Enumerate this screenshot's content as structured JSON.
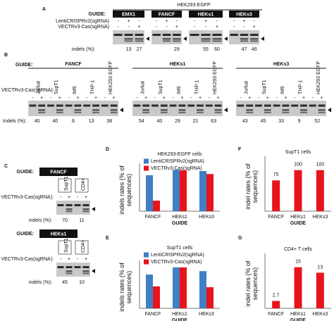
{
  "panel_a": {
    "letter": "A",
    "title": "HEK293-EGFP",
    "guide_label": "GUIDE:",
    "row_labels": [
      "LentiCRISPRv2(sgRNA)",
      "VECTRv3-Cas(sgRNA)"
    ],
    "indel_label": "indels (%):",
    "groups": [
      {
        "guide": "EMX1",
        "signs": [
          [
            "-",
            "+",
            "-"
          ],
          [
            "-",
            "-",
            "+"
          ]
        ],
        "indels": [
          13,
          27
        ]
      },
      {
        "guide": "FANCF",
        "signs": [
          [
            "-",
            "+",
            "-"
          ],
          [
            "-",
            "-",
            "+"
          ]
        ],
        "indels": [
          29
        ]
      },
      {
        "guide": "HEKs1",
        "signs": [
          [
            "-",
            "+",
            "-"
          ],
          [
            "-",
            "-",
            "+"
          ]
        ],
        "indels": [
          55,
          60
        ]
      },
      {
        "guide": "HEKs3",
        "signs": [
          [
            "-",
            "+",
            "-"
          ],
          [
            "-",
            "-",
            "+"
          ]
        ],
        "indels": [
          47,
          46
        ]
      }
    ]
  },
  "panel_b": {
    "letter": "B",
    "guide_label": "GUIDE:",
    "row_label": "VECTRv3-Cas(sgRNA):",
    "indel_label": "Indels (%):",
    "signs": [
      "-",
      "+"
    ],
    "groups": [
      {
        "guide": "FANCF",
        "lanes": [
          "Jurkat",
          "SupT1",
          "IM9",
          "THP-1",
          "HEK293 EGFP"
        ],
        "indels": [
          40,
          40,
          6,
          13,
          38
        ]
      },
      {
        "guide": "HEKs1",
        "lanes": [
          "Jurkat",
          "SupT1",
          "IM9",
          "THP-1",
          "HEK293 EGFP"
        ],
        "indels": [
          54,
          40,
          29,
          21,
          63
        ]
      },
      {
        "guide": "HEKs3",
        "lanes": [
          "Jurkat",
          "SupT1",
          "IM9",
          "THP-1",
          "HEK293 EGFP"
        ],
        "indels": [
          43,
          45,
          33,
          9,
          52
        ]
      }
    ]
  },
  "panel_c": {
    "letter": "C",
    "blots": [
      {
        "guide_label": "GUIDE:",
        "guide": "FANCF",
        "lanes": [
          "SupT1",
          "CD4+"
        ],
        "row_label": "VECTRv3-Cas(sgRNA):",
        "signs": [
          "-",
          "+"
        ],
        "indel_label": "indels (%):",
        "indels": [
          70,
          11
        ]
      },
      {
        "guide_label": "GUIDE:",
        "guide": "HEKs1",
        "lanes": [
          "SupT1",
          "CD4+"
        ],
        "row_label": "VECTRv3-Cas(sgRNA):",
        "signs": [
          "-",
          "+"
        ],
        "indel_label": "indels (%):",
        "indels": [
          45,
          10
        ]
      }
    ]
  },
  "chart_data": [
    {
      "type": "bar",
      "panel": "D",
      "title": "HEK293-EGFP cells",
      "y_label": "indels rates (% of sequences)",
      "x_label": "GUIDE",
      "categories": [
        "FANCF",
        "HEKs1",
        "HEKs3"
      ],
      "ylim": [
        0,
        100
      ],
      "series": [
        {
          "name": "LentiCRISPRv2(sgRNA)",
          "color": "#3f7fc4",
          "values": [
            85,
            98,
            95
          ]
        },
        {
          "name": "VECTRv3-Cas(sgRNA)",
          "color": "#e8141c",
          "values": [
            25,
            97,
            88
          ]
        }
      ]
    },
    {
      "type": "bar",
      "panel": "E",
      "title": "SupT1 cells",
      "y_label": "indels rates (% of sequences)",
      "x_label": "GUIDE",
      "categories": [
        "FANCF",
        "HEKs1",
        "HEKs3"
      ],
      "ylim": [
        0,
        100
      ],
      "series": [
        {
          "name": "LentiCRISPRv2(sgRNA)",
          "color": "#3f7fc4",
          "values": [
            80,
            97,
            88
          ]
        },
        {
          "name": "VECTRv3-Cas(sgRNA)",
          "color": "#e8141c",
          "values": [
            52,
            97,
            50
          ]
        }
      ]
    },
    {
      "type": "bar",
      "panel": "F",
      "title": "SupT1 cells",
      "y_label": "indel rates (% of sequences)",
      "x_label": "GUIDE",
      "categories": [
        "FANCF",
        "HEKs1",
        "HEKs3"
      ],
      "ylim": [
        0,
        120
      ],
      "values": [
        75,
        100,
        100
      ],
      "color": "#e8141c",
      "data_labels": true
    },
    {
      "type": "bar",
      "panel": "G",
      "title": "CD4+ T cells",
      "y_label": "indel rates (% of sequences)",
      "x_label": "GUIDE",
      "categories": [
        "FANCF",
        "HEKs1",
        "HEKs3"
      ],
      "ylim": [
        0,
        18
      ],
      "values": [
        2.7,
        15,
        13
      ],
      "color": "#e8141c",
      "data_labels": true
    }
  ]
}
